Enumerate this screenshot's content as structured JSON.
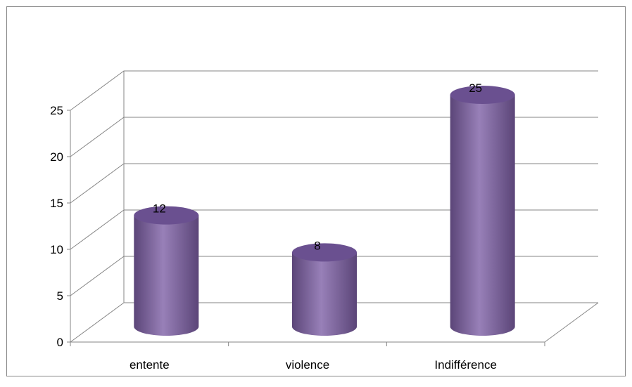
{
  "chart_data": {
    "type": "bar",
    "style": "3d-cylinder",
    "categories": [
      "entente",
      "violence",
      "Indifférence"
    ],
    "values": [
      12,
      8,
      25
    ],
    "ylim": [
      0,
      25
    ],
    "yticks": [
      "0",
      "5",
      "10",
      "15",
      "20",
      "25"
    ],
    "data_labels": [
      "12",
      "8",
      "25"
    ],
    "grid": true,
    "legend": "none",
    "colors": {
      "bar": "#8064A2",
      "bar_light": "#9880B8",
      "bar_dark": "#5B4578",
      "bar_top": "#6A5090",
      "grid": "#868686",
      "border": "#868686"
    }
  }
}
